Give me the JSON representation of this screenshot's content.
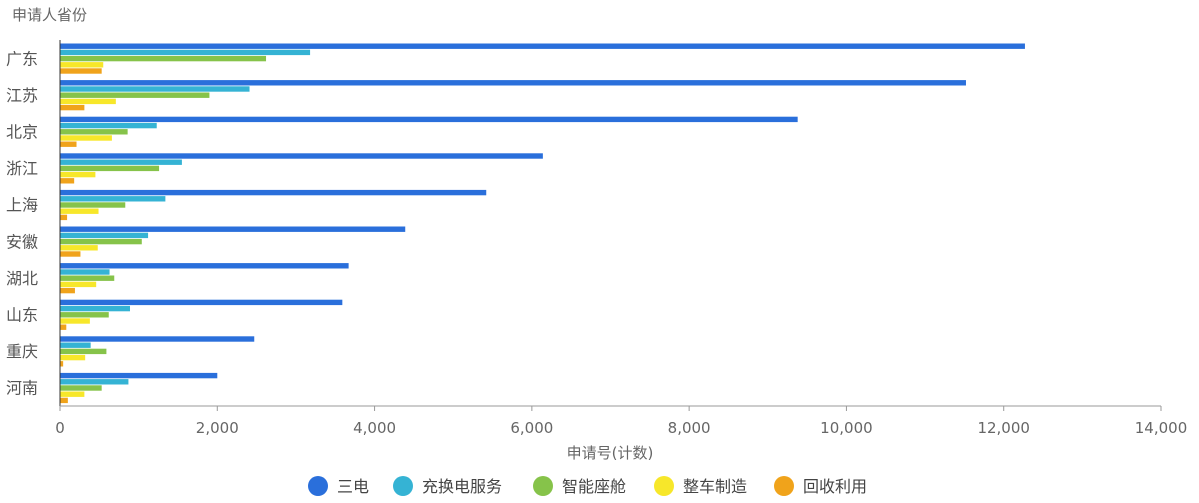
{
  "chart_data": {
    "type": "bar",
    "orientation": "horizontal",
    "ylabel": "申请人省份",
    "xlabel": "申请号(计数)",
    "categories": [
      "广东",
      "江苏",
      "北京",
      "浙江",
      "上海",
      "安徽",
      "湖北",
      "山东",
      "重庆",
      "河南"
    ],
    "xlim": [
      0,
      14000
    ],
    "xticks": [
      0,
      2000,
      4000,
      6000,
      8000,
      10000,
      12000,
      14000
    ],
    "xtick_labels": [
      "0",
      "2,000",
      "4,000",
      "6,000",
      "8,000",
      "10,000",
      "12,000",
      "14,000"
    ],
    "grid": false,
    "legend_position": "bottom",
    "series": [
      {
        "name": "三电",
        "color": "#2a6fdb",
        "values": [
          12270,
          11520,
          9380,
          6140,
          5420,
          4390,
          3670,
          3590,
          2470,
          2000
        ]
      },
      {
        "name": "充换电服务",
        "color": "#35b3d4",
        "values": [
          3180,
          2410,
          1230,
          1550,
          1340,
          1120,
          630,
          890,
          390,
          870
        ]
      },
      {
        "name": "智能座舱",
        "color": "#86c34a",
        "values": [
          2620,
          1900,
          860,
          1260,
          830,
          1040,
          690,
          620,
          590,
          530
        ]
      },
      {
        "name": "整车制造",
        "color": "#f7e72a",
        "values": [
          550,
          710,
          660,
          450,
          490,
          480,
          460,
          380,
          320,
          310
        ]
      },
      {
        "name": "回收利用",
        "color": "#f0a31b",
        "values": [
          530,
          310,
          210,
          180,
          90,
          260,
          190,
          80,
          40,
          100
        ]
      }
    ]
  }
}
